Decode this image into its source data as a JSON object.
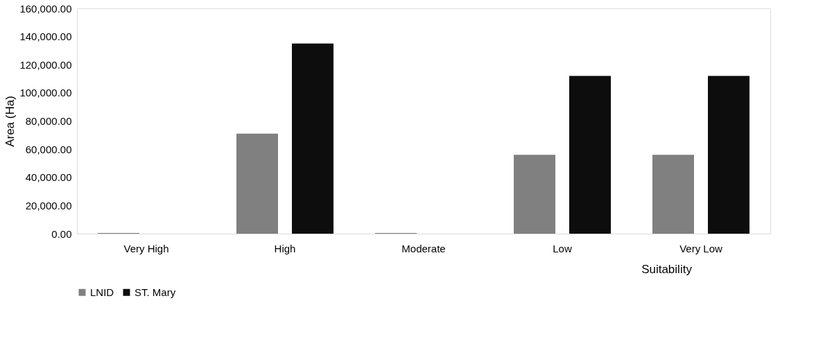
{
  "chart_data": {
    "type": "bar",
    "xlabel": "Suitability",
    "ylabel": "Area (Ha)",
    "categories": [
      "Very High",
      "High",
      "Moderate",
      "Low",
      "Very Low"
    ],
    "series": [
      {
        "name": "LNID",
        "color": "#808080",
        "values": [
          500,
          71000,
          500,
          56000,
          56000
        ]
      },
      {
        "name": "ST. Mary",
        "color": "#0d0d0d",
        "values": [
          0,
          135000,
          0,
          112000,
          112000
        ]
      }
    ],
    "ylim": [
      0,
      160000
    ],
    "yticks": [
      {
        "value": 0,
        "label": "0.00"
      },
      {
        "value": 20000,
        "label": "20,000.00"
      },
      {
        "value": 40000,
        "label": "40,000.00"
      },
      {
        "value": 60000,
        "label": "60,000.00"
      },
      {
        "value": 80000,
        "label": "80,000.00"
      },
      {
        "value": 100000,
        "label": "100,000.00"
      },
      {
        "value": 120000,
        "label": "120,000.00"
      },
      {
        "value": 140000,
        "label": "140,000.00"
      },
      {
        "value": 160000,
        "label": "160,000.00"
      }
    ],
    "grid": false,
    "legend": "bottom"
  }
}
